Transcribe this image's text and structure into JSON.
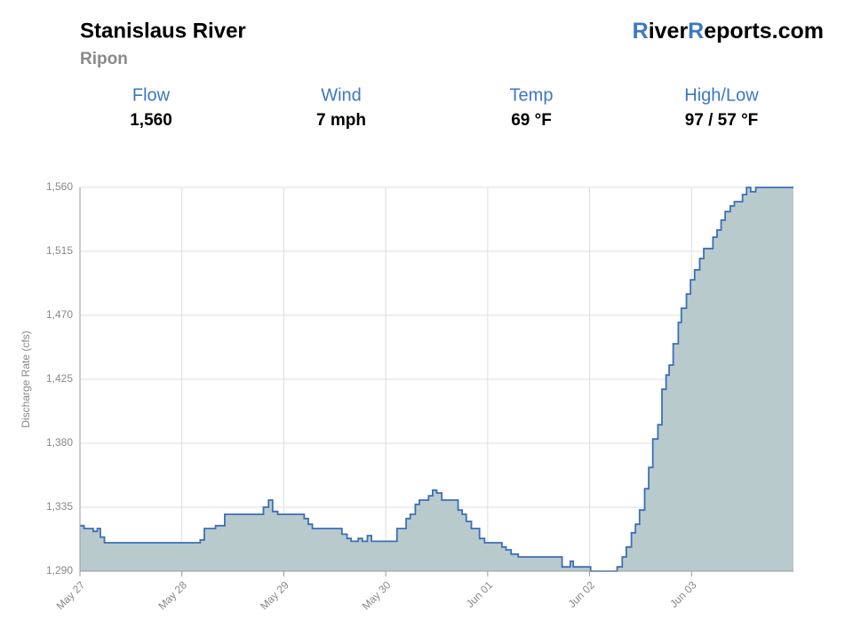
{
  "header": {
    "title": "Stanislaus River",
    "subtitle": "Ripon",
    "brand": [
      "R",
      "iver",
      "R",
      "eports.com"
    ]
  },
  "stats": [
    {
      "label": "Flow",
      "value": "1,560"
    },
    {
      "label": "Wind",
      "value": "7 mph"
    },
    {
      "label": "Temp",
      "value": "69 °F"
    },
    {
      "label": "High/Low",
      "value": "97 / 57 °F"
    }
  ],
  "chart_data": {
    "type": "step-area",
    "y_label": "Discharge Rate (cfs)",
    "color": "#3a6fb8",
    "fill": "#b9cacd",
    "grid": true,
    "xlim": [
      0,
      7
    ],
    "xticks": [
      {
        "value": 0,
        "label": "May 27"
      },
      {
        "value": 1,
        "label": "May 28"
      },
      {
        "value": 2,
        "label": "May 29"
      },
      {
        "value": 3,
        "label": "May 30"
      },
      {
        "value": 4,
        "label": "Jun 01"
      },
      {
        "value": 5,
        "label": "Jun 02"
      },
      {
        "value": 6,
        "label": "Jun 03"
      }
    ],
    "ylim": [
      1290,
      1560
    ],
    "yticks": [
      {
        "value": 1290,
        "label": "1,290"
      },
      {
        "value": 1335,
        "label": "1,335"
      },
      {
        "value": 1380,
        "label": "1,380"
      },
      {
        "value": 1425,
        "label": "1,425"
      },
      {
        "value": 1470,
        "label": "1,470"
      },
      {
        "value": 1515,
        "label": "1,515"
      },
      {
        "value": 1560,
        "label": "1,560"
      }
    ],
    "x": [
      0,
      0.04,
      0.13,
      0.17,
      0.2,
      0.24,
      1.18,
      1.22,
      1.33,
      1.42,
      1.8,
      1.85,
      1.89,
      1.94,
      2.2,
      2.24,
      2.28,
      2.57,
      2.62,
      2.66,
      2.73,
      2.77,
      2.82,
      2.86,
      3.11,
      3.2,
      3.24,
      3.29,
      3.33,
      3.42,
      3.46,
      3.5,
      3.55,
      3.71,
      3.75,
      3.79,
      3.84,
      3.92,
      3.97,
      4.14,
      4.18,
      4.23,
      4.3,
      4.73,
      4.81,
      4.84,
      5.01,
      5.27,
      5.32,
      5.36,
      5.41,
      5.45,
      5.49,
      5.54,
      5.58,
      5.62,
      5.67,
      5.71,
      5.75,
      5.78,
      5.82,
      5.87,
      5.9,
      5.95,
      5.99,
      6.03,
      6.08,
      6.12,
      6.16,
      6.21,
      6.25,
      6.29,
      6.33,
      6.38,
      6.42,
      6.5,
      6.54,
      6.58,
      6.63,
      7
    ],
    "values": [
      1322,
      1320,
      1318,
      1320,
      1314,
      1310,
      1312,
      1320,
      1322,
      1330,
      1335,
      1340,
      1332,
      1330,
      1327,
      1323,
      1320,
      1316,
      1313,
      1311,
      1313,
      1311,
      1315,
      1311,
      1320,
      1327,
      1330,
      1337,
      1340,
      1343,
      1347,
      1345,
      1340,
      1333,
      1330,
      1325,
      1320,
      1313,
      1310,
      1307,
      1305,
      1302,
      1300,
      1293,
      1297,
      1293,
      1290,
      1293,
      1300,
      1307,
      1317,
      1323,
      1333,
      1348,
      1363,
      1383,
      1393,
      1418,
      1428,
      1435,
      1450,
      1465,
      1475,
      1485,
      1495,
      1502,
      1510,
      1517,
      1517,
      1525,
      1530,
      1537,
      1543,
      1547,
      1550,
      1555,
      1560,
      1557,
      1560,
      1560
    ]
  }
}
